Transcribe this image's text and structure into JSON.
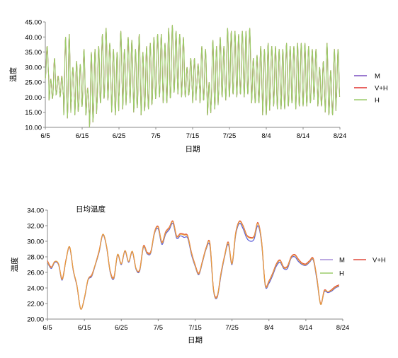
{
  "chart_data": [
    {
      "type": "line",
      "title": "",
      "xlabel": "日期",
      "ylabel": "温度",
      "ylim": [
        10,
        45
      ],
      "yticks": [
        "10.00",
        "15.00",
        "20.00",
        "25.00",
        "30.00",
        "35.00",
        "40.00",
        "45.00"
      ],
      "xlim_day": [
        0,
        80
      ],
      "xticks": [
        "6/5",
        "6/15",
        "6/25",
        "7/5",
        "7/15",
        "7/25",
        "8/4",
        "8/14",
        "8/24"
      ],
      "grid": false,
      "legend_position": "right",
      "note": "hourly temperature, 6/5–8/21, diurnal oscillation; series nearly identical",
      "x_start": "6/5",
      "x_end": "8/21",
      "daily_max": [
        37,
        26,
        33,
        27,
        27,
        40,
        41,
        30,
        32,
        31,
        36,
        23,
        35,
        36,
        37,
        41,
        43,
        38,
        36,
        35,
        42,
        36,
        40,
        39,
        36,
        41,
        35,
        37,
        38,
        40,
        41,
        41,
        38,
        43,
        44,
        42,
        41,
        40,
        30,
        33,
        33,
        31,
        37,
        36,
        25,
        39,
        37,
        40,
        37,
        43,
        42,
        42,
        41,
        42,
        42,
        43,
        33,
        34,
        37,
        36,
        38,
        37,
        37,
        36,
        36,
        38,
        37,
        37,
        38,
        38,
        38,
        37,
        36,
        36,
        30,
        32,
        38,
        29,
        36,
        36
      ],
      "daily_min": [
        26,
        19,
        20,
        21,
        20,
        14,
        13,
        18,
        14,
        16,
        17,
        14,
        10,
        13,
        17,
        18,
        20,
        19,
        15,
        14,
        20,
        16,
        20,
        18,
        15,
        17,
        14,
        16,
        16,
        18,
        20,
        20,
        18,
        18,
        20,
        22,
        21,
        20,
        20,
        21,
        18,
        22,
        18,
        19,
        14,
        17,
        16,
        20,
        20,
        19,
        20,
        21,
        20,
        21,
        20,
        21,
        18,
        18,
        18,
        14,
        14,
        18,
        17,
        16,
        16,
        16,
        17,
        18,
        16,
        17,
        17,
        17,
        18,
        20,
        17,
        17,
        15,
        14,
        14,
        19
      ],
      "series": [
        {
          "name": "M",
          "color": "#7a4fc0"
        },
        {
          "name": "V+H",
          "color": "#e0312e"
        },
        {
          "name": "H",
          "color": "#9ccc6a"
        }
      ]
    },
    {
      "type": "line",
      "title": "日均温度",
      "xlabel": "日期",
      "ylabel": "温度",
      "ylim": [
        20,
        34
      ],
      "yticks": [
        "20.00",
        "22.00",
        "24.00",
        "26.00",
        "28.00",
        "30.00",
        "32.00",
        "34.00"
      ],
      "xlim_day": [
        0,
        80
      ],
      "xticks": [
        "6/5",
        "6/15",
        "6/25",
        "7/5",
        "7/15",
        "7/25",
        "8/4",
        "8/14",
        "8/24"
      ],
      "grid": false,
      "legend_position": "right",
      "x_start": "6/5",
      "x_end": "8/21",
      "series": [
        {
          "name": "M",
          "color": "#5a5cd8",
          "values": [
            27.3,
            26.5,
            27.3,
            27.0,
            25.0,
            27.5,
            29.2,
            26.2,
            24.2,
            21.3,
            22.6,
            25.0,
            25.5,
            27.0,
            28.6,
            30.8,
            29.3,
            26.0,
            25.2,
            28.2,
            27.0,
            28.7,
            27.3,
            28.6,
            26.4,
            26.2,
            29.2,
            28.4,
            28.5,
            31.0,
            31.6,
            29.6,
            30.9,
            31.5,
            32.3,
            30.4,
            30.7,
            30.5,
            30.4,
            28.3,
            26.8,
            25.7,
            27.3,
            29.0,
            29.4,
            23.6,
            22.8,
            25.6,
            28.0,
            29.6,
            27.0,
            30.8,
            32.3,
            31.6,
            30.4,
            30.0,
            30.3,
            32.0,
            29.8,
            24.3,
            24.6,
            25.6,
            26.8,
            27.3,
            26.5,
            26.5,
            27.8,
            28.0,
            27.4,
            27.0,
            26.9,
            27.3,
            27.6,
            25.0,
            21.9,
            23.5,
            23.4,
            23.6,
            24.0,
            24.2
          ]
        },
        {
          "name": "V+H",
          "color": "#e04a3c",
          "values": [
            27.5,
            26.7,
            27.4,
            27.1,
            25.2,
            27.6,
            29.3,
            26.3,
            24.3,
            21.3,
            22.7,
            25.1,
            25.7,
            27.1,
            28.8,
            30.9,
            29.4,
            26.2,
            25.4,
            28.3,
            27.1,
            28.8,
            27.4,
            28.7,
            26.5,
            26.4,
            29.4,
            28.6,
            28.7,
            31.2,
            31.9,
            29.9,
            31.2,
            31.8,
            32.6,
            30.7,
            31.0,
            30.9,
            30.7,
            28.6,
            27.0,
            25.9,
            27.5,
            29.2,
            29.8,
            23.8,
            23.0,
            25.9,
            28.2,
            29.9,
            27.2,
            31.1,
            32.6,
            32.0,
            30.8,
            30.5,
            30.7,
            32.4,
            30.1,
            24.5,
            24.9,
            25.9,
            27.1,
            27.6,
            26.7,
            26.8,
            28.0,
            28.3,
            27.7,
            27.2,
            27.1,
            27.5,
            27.8,
            25.3,
            22.0,
            23.7,
            23.5,
            23.8,
            24.2,
            24.4
          ]
        },
        {
          "name": "H",
          "color": "#e8a13c",
          "values": [
            27.4,
            26.6,
            27.4,
            27.1,
            25.1,
            27.5,
            29.3,
            26.3,
            24.3,
            21.3,
            22.7,
            25.1,
            25.6,
            27.1,
            28.7,
            30.9,
            29.4,
            26.1,
            25.3,
            28.3,
            27.1,
            28.8,
            27.4,
            28.7,
            26.5,
            26.3,
            29.3,
            28.5,
            28.6,
            31.1,
            31.8,
            29.8,
            31.1,
            31.7,
            32.5,
            30.6,
            30.9,
            30.8,
            30.6,
            28.5,
            26.9,
            25.8,
            27.4,
            29.1,
            29.7,
            23.7,
            22.9,
            25.8,
            28.1,
            29.8,
            27.1,
            31.0,
            32.5,
            31.9,
            30.7,
            30.4,
            30.6,
            32.3,
            30.0,
            24.4,
            24.8,
            25.8,
            27.0,
            27.5,
            26.6,
            26.7,
            27.9,
            28.2,
            27.6,
            27.1,
            27.0,
            27.4,
            27.7,
            25.2,
            21.9,
            23.6,
            23.5,
            23.7,
            24.1,
            24.3
          ]
        }
      ],
      "legend_text_color": "#9ccc6a"
    }
  ]
}
